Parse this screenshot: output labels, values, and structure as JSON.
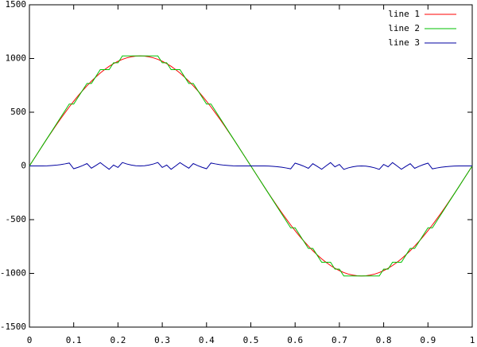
{
  "chart_data": {
    "type": "line",
    "x": [
      0,
      0.01,
      0.02,
      0.03,
      0.04,
      0.05,
      0.06,
      0.07,
      0.08,
      0.09,
      0.1,
      0.11,
      0.12,
      0.13,
      0.14,
      0.15,
      0.16,
      0.17,
      0.18,
      0.19,
      0.2,
      0.21,
      0.22,
      0.23,
      0.24,
      0.25,
      0.26,
      0.27,
      0.28,
      0.29,
      0.3,
      0.31,
      0.32,
      0.33,
      0.34,
      0.35,
      0.36,
      0.37,
      0.38,
      0.39,
      0.4,
      0.41,
      0.42,
      0.43,
      0.44,
      0.45,
      0.46,
      0.47,
      0.48,
      0.49,
      0.5,
      0.51,
      0.52,
      0.53,
      0.54,
      0.55,
      0.56,
      0.57,
      0.58,
      0.59,
      0.6,
      0.61,
      0.62,
      0.63,
      0.64,
      0.65,
      0.66,
      0.67,
      0.68,
      0.69,
      0.7,
      0.71,
      0.72,
      0.73,
      0.74,
      0.75,
      0.76,
      0.77,
      0.78,
      0.79,
      0.8,
      0.81,
      0.82,
      0.83,
      0.84,
      0.85,
      0.86,
      0.87,
      0.88,
      0.89,
      0.9,
      0.91,
      0.92,
      0.93,
      0.94,
      0.95,
      0.96,
      0.97,
      0.98,
      0.99,
      1
    ],
    "series": [
      {
        "name": "line 1",
        "color": "#ff0000",
        "values": [
          0,
          64,
          128,
          192,
          255,
          316,
          377,
          436,
          493,
          549,
          602,
          653,
          701,
          746,
          789,
          828,
          865,
          897,
          927,
          952,
          974,
          992,
          1006,
          1016,
          1022,
          1024,
          1022,
          1016,
          1006,
          992,
          974,
          952,
          927,
          897,
          865,
          828,
          789,
          746,
          701,
          653,
          602,
          549,
          493,
          436,
          377,
          316,
          255,
          192,
          128,
          64,
          0,
          -64,
          -128,
          -192,
          -255,
          -316,
          -377,
          -436,
          -493,
          -549,
          -602,
          -653,
          -701,
          -746,
          -789,
          -828,
          -865,
          -897,
          -927,
          -952,
          -974,
          -992,
          -1006,
          -1016,
          -1022,
          -1024,
          -1022,
          -1016,
          -1006,
          -992,
          -974,
          -952,
          -927,
          -897,
          -865,
          -828,
          -789,
          -746,
          -701,
          -653,
          -602,
          -549,
          -493,
          -436,
          -377,
          -316,
          -255,
          -192,
          -128,
          -64,
          0
        ]
      },
      {
        "name": "line 2",
        "color": "#00c000",
        "values": [
          0,
          64,
          128,
          192,
          256,
          320,
          384,
          448,
          512,
          576,
          576,
          640,
          704,
          768,
          768,
          832,
          896,
          896,
          896,
          960,
          960,
          1024,
          1024,
          1024,
          1024,
          1024,
          1024,
          1024,
          1024,
          1024,
          960,
          960,
          896,
          896,
          896,
          832,
          768,
          768,
          704,
          640,
          576,
          576,
          512,
          448,
          384,
          320,
          256,
          192,
          128,
          64,
          0,
          -64,
          -128,
          -192,
          -256,
          -320,
          -384,
          -448,
          -512,
          -576,
          -576,
          -640,
          -704,
          -768,
          -768,
          -832,
          -896,
          -896,
          -896,
          -960,
          -960,
          -1024,
          -1024,
          -1024,
          -1024,
          -1024,
          -1024,
          -1024,
          -1024,
          -1024,
          -960,
          -960,
          -896,
          -896,
          -896,
          -832,
          -768,
          -768,
          -704,
          -640,
          -576,
          -576,
          -512,
          -448,
          -384,
          -320,
          -256,
          -192,
          -128,
          -64,
          0
        ]
      },
      {
        "name": "line 3",
        "color": "#0000a0",
        "values": [
          0,
          0,
          0,
          0,
          1,
          4,
          7,
          12,
          19,
          27,
          -26,
          -13,
          3,
          22,
          -21,
          4,
          31,
          -1,
          -31,
          8,
          -14,
          32,
          18,
          8,
          2,
          0,
          2,
          8,
          18,
          32,
          -14,
          8,
          -31,
          -1,
          31,
          4,
          -21,
          22,
          3,
          -13,
          -26,
          27,
          19,
          12,
          7,
          4,
          1,
          0,
          0,
          0,
          0,
          0,
          0,
          0,
          -1,
          -4,
          -7,
          -12,
          -19,
          -27,
          26,
          13,
          -3,
          -22,
          21,
          -4,
          -31,
          1,
          31,
          -8,
          14,
          -32,
          -18,
          -8,
          -2,
          0,
          -2,
          -8,
          -18,
          -32,
          14,
          -8,
          31,
          1,
          -31,
          -4,
          21,
          -22,
          -3,
          13,
          26,
          -27,
          -19,
          -12,
          -7,
          -4,
          -1,
          0,
          0,
          0,
          0
        ]
      }
    ],
    "xlim": [
      0,
      1
    ],
    "xticks": [
      0,
      0.1,
      0.2,
      0.3,
      0.4,
      0.5,
      0.6,
      0.7,
      0.8,
      0.9,
      1
    ],
    "ylim": [
      -1500,
      1500
    ],
    "yticks": [
      -1500,
      -1000,
      -500,
      0,
      500,
      1000,
      1500
    ],
    "grid": false,
    "legend": "top-right"
  }
}
